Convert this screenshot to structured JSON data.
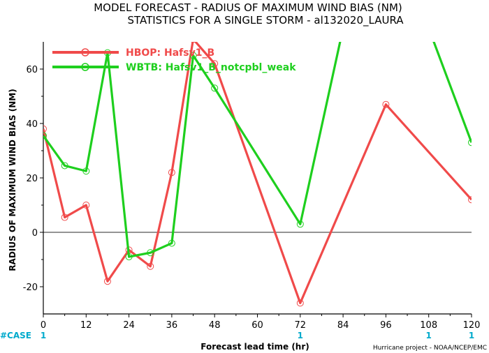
{
  "chart_data": {
    "type": "line",
    "title": "MODEL FORECAST - RADIUS OF MAXIMUM WIND BIAS (NM)",
    "subtitle": "STATISTICS FOR A SINGLE STORM - al132020_LAURA",
    "xlabel": "Forecast lead time (hr)",
    "ylabel": "RADIUS OF MAXIMUM WIND BIAS (NM)",
    "xlim": [
      0,
      120
    ],
    "ylim": [
      -30,
      70
    ],
    "x_ticks": [
      "0",
      "12",
      "24",
      "36",
      "48",
      "60",
      "72",
      "84",
      "96",
      "108",
      "120"
    ],
    "y_ticks": [
      "-20",
      "0",
      "20",
      "40",
      "60"
    ],
    "grid": false,
    "legend_position": "top-left",
    "zero_line": true,
    "series": [
      {
        "name": "HBOP: Hafsv1_B",
        "color": "#f04a4a",
        "x": [
          0,
          6,
          12,
          18,
          24,
          30,
          36,
          42,
          48,
          72,
          96,
          120
        ],
        "y": [
          38,
          5.5,
          10,
          -18,
          -6.5,
          -12.5,
          22,
          71,
          62,
          -26,
          47,
          12
        ]
      },
      {
        "name": "WBTB: Hafsv1_B_notcpbl_weak",
        "color": "#1ecf1e",
        "x": [
          0,
          6,
          12,
          18,
          24,
          30,
          36,
          42,
          48,
          72,
          84,
          108,
          120
        ],
        "y": [
          35.5,
          24.5,
          22.5,
          66,
          -9,
          -7.5,
          -4,
          65,
          53,
          3,
          75,
          75,
          33
        ]
      }
    ],
    "case_label": "#CASE",
    "case_counts": [
      {
        "x": 0,
        "label": "1"
      },
      {
        "x": 72,
        "label": "1"
      },
      {
        "x": 108,
        "label": "1"
      },
      {
        "x": 120,
        "label": "1"
      }
    ],
    "credit": "Hurricane project - NOAA/NCEP/EMC"
  }
}
